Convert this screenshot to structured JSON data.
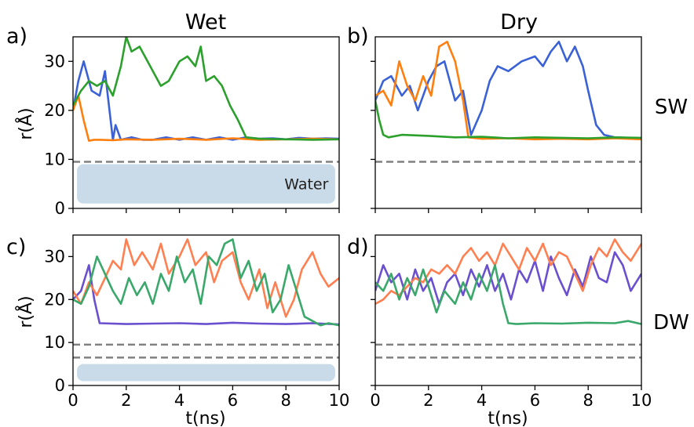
{
  "figure": {
    "column_titles": [
      "Wet",
      "Dry"
    ],
    "row_labels": [
      "SW",
      "DW"
    ],
    "panel_labels": [
      "a)",
      "b)",
      "c)",
      "d)"
    ],
    "xlabel": "t(ns)",
    "ylabel": "r(Å)",
    "water_label": "Water"
  },
  "chart_data": [
    {
      "type": "line",
      "panel": "a)",
      "column": "Wet",
      "row": "SW",
      "xlim": [
        0,
        10
      ],
      "ylim": [
        0,
        35
      ],
      "xticks": [
        0,
        2,
        4,
        6,
        8,
        10
      ],
      "yticks": [
        0,
        10,
        20,
        30
      ],
      "x_tick_labels_shown": false,
      "ylabel": "r(Å)",
      "reference_lines": [
        {
          "y": 9.5,
          "style": "dashed",
          "color": "#808080"
        }
      ],
      "shaded_region": {
        "label": "Water",
        "y_range": [
          1,
          9
        ],
        "color": "#c9dbe8"
      },
      "series": [
        {
          "color": "#3b61d6",
          "x": [
            0,
            0.2,
            0.4,
            0.7,
            1,
            1.2,
            1.5,
            1.6,
            1.8,
            2.2,
            2.6,
            3,
            3.5,
            4,
            4.5,
            5,
            5.5,
            6,
            6.5,
            7,
            7.5,
            8,
            8.5,
            9,
            9.5,
            10
          ],
          "y": [
            20,
            26,
            30,
            24,
            23,
            28,
            14,
            17,
            14,
            14.5,
            14,
            14,
            14.5,
            14,
            14.5,
            14,
            14.5,
            14,
            14.5,
            14.2,
            14.3,
            14.1,
            14.4,
            14.2,
            14.3,
            14.2
          ]
        },
        {
          "color": "#ff7f0e",
          "x": [
            0,
            0.2,
            0.4,
            0.6,
            0.8,
            1,
            1.5,
            2,
            3,
            4,
            5,
            6,
            7,
            8,
            9,
            10
          ],
          "y": [
            20,
            23,
            18,
            13.8,
            14,
            14,
            13.9,
            14.1,
            14,
            14.2,
            14,
            14.3,
            14,
            14.1,
            14.2,
            14.1
          ]
        },
        {
          "color": "#2ca02c",
          "x": [
            0,
            0.3,
            0.6,
            0.9,
            1.2,
            1.5,
            1.8,
            2,
            2.2,
            2.5,
            3,
            3.3,
            3.6,
            4,
            4.3,
            4.6,
            4.8,
            5,
            5.3,
            5.6,
            5.9,
            6.2,
            6.5,
            7,
            8,
            9,
            10
          ],
          "y": [
            21,
            24,
            26,
            25,
            26,
            23,
            29,
            35,
            32,
            33,
            28,
            25,
            26,
            30,
            31,
            29,
            33,
            26,
            27,
            25,
            21,
            18,
            14.5,
            14.2,
            14.1,
            14,
            14.1
          ]
        }
      ]
    },
    {
      "type": "line",
      "panel": "b)",
      "column": "Dry",
      "row": "SW",
      "xlim": [
        0,
        10
      ],
      "ylim": [
        0,
        35
      ],
      "xticks": [
        0,
        2,
        4,
        6,
        8,
        10
      ],
      "yticks": [
        0,
        10,
        20,
        30
      ],
      "x_tick_labels_shown": false,
      "y_tick_labels_shown": false,
      "reference_lines": [
        {
          "y": 9.5,
          "style": "dashed",
          "color": "#808080"
        }
      ],
      "series": [
        {
          "color": "#3b61d6",
          "x": [
            0,
            0.3,
            0.6,
            1,
            1.3,
            1.6,
            2,
            2.3,
            2.6,
            3,
            3.3,
            3.6,
            4,
            4.3,
            4.6,
            5,
            5.5,
            6,
            6.3,
            6.6,
            6.9,
            7.2,
            7.5,
            7.8,
            8,
            8.3,
            8.6,
            9,
            10
          ],
          "y": [
            22,
            26,
            27,
            23,
            25,
            20,
            26,
            29,
            30,
            22,
            24,
            15,
            20,
            26,
            29,
            28,
            30,
            31,
            29,
            32,
            34,
            30,
            33,
            29,
            24,
            17,
            15,
            14.5,
            14.3
          ]
        },
        {
          "color": "#ff7f0e",
          "x": [
            0,
            0.3,
            0.6,
            0.9,
            1.2,
            1.5,
            1.8,
            2.1,
            2.4,
            2.7,
            3,
            3.3,
            3.5,
            4,
            5,
            6,
            7,
            8,
            9,
            10
          ],
          "y": [
            23,
            24,
            21,
            30,
            25,
            22,
            27,
            23,
            33,
            34,
            30,
            22,
            14.5,
            14.2,
            14.3,
            14.1,
            14.2,
            14.1,
            14.3,
            14.1
          ]
        },
        {
          "color": "#2ca02c",
          "x": [
            0,
            0.15,
            0.3,
            0.5,
            1,
            2,
            3,
            4,
            5,
            6,
            7,
            8,
            9,
            10
          ],
          "y": [
            22,
            18,
            15,
            14.5,
            15,
            14.8,
            14.5,
            14.6,
            14.3,
            14.5,
            14.4,
            14.3,
            14.5,
            14.4
          ]
        }
      ]
    },
    {
      "type": "line",
      "panel": "c)",
      "column": "Wet",
      "row": "DW",
      "xlim": [
        0,
        10
      ],
      "ylim": [
        0,
        35
      ],
      "xticks": [
        0,
        2,
        4,
        6,
        8,
        10
      ],
      "yticks": [
        0,
        10,
        20,
        30
      ],
      "x_tick_labels": [
        "0",
        "2",
        "4",
        "6",
        "8",
        "10"
      ],
      "xlabel": "t(ns)",
      "ylabel": "r(Å)",
      "reference_lines": [
        {
          "y": 9.5,
          "style": "dashed",
          "color": "#808080"
        },
        {
          "y": 6.5,
          "style": "dashed",
          "color": "#808080"
        }
      ],
      "shaded_region": {
        "y_range": [
          1,
          5
        ],
        "color": "#c9dbe8"
      },
      "series": [
        {
          "color": "#6a4fcf",
          "x": [
            0,
            0.3,
            0.6,
            0.8,
            1,
            2,
            3,
            4,
            5,
            6,
            7,
            8,
            9,
            10
          ],
          "y": [
            20,
            22,
            28,
            20,
            14.5,
            14.3,
            14.4,
            14.5,
            14.3,
            14.6,
            14.4,
            14.3,
            14.5,
            14.2
          ]
        },
        {
          "color": "#ff7f50",
          "x": [
            0,
            0.3,
            0.6,
            0.9,
            1.2,
            1.5,
            1.8,
            2,
            2.3,
            2.6,
            3,
            3.3,
            3.6,
            4,
            4.3,
            4.6,
            5,
            5.3,
            5.6,
            6,
            6.3,
            6.6,
            7,
            7.3,
            7.6,
            8,
            8.3,
            8.6,
            9,
            9.3,
            9.6,
            10
          ],
          "y": [
            22,
            19,
            24,
            21,
            25,
            29,
            27,
            34,
            28,
            31,
            27,
            33,
            26,
            30,
            34,
            28,
            31,
            24,
            29,
            31,
            24,
            20,
            27,
            18,
            24,
            16,
            20,
            27,
            31,
            26,
            23,
            25
          ]
        },
        {
          "color": "#3aa86b",
          "x": [
            0,
            0.3,
            0.6,
            0.9,
            1.2,
            1.5,
            1.8,
            2.1,
            2.4,
            2.7,
            3,
            3.3,
            3.6,
            3.9,
            4.2,
            4.5,
            4.8,
            5.1,
            5.4,
            5.7,
            6,
            6.3,
            6.6,
            6.9,
            7.2,
            7.5,
            7.8,
            8.1,
            8.4,
            8.7,
            9,
            9.3,
            9.6,
            10
          ],
          "y": [
            20,
            19,
            23,
            30,
            26,
            22,
            19,
            25,
            21,
            24,
            19,
            26,
            22,
            30,
            24,
            27,
            19,
            30,
            28,
            33,
            34,
            25,
            29,
            22,
            26,
            17,
            20,
            28,
            22,
            16,
            15,
            14,
            14.5,
            14
          ]
        }
      ]
    },
    {
      "type": "line",
      "panel": "d)",
      "column": "Dry",
      "row": "DW",
      "xlim": [
        0,
        10
      ],
      "ylim": [
        0,
        35
      ],
      "xticks": [
        0,
        2,
        4,
        6,
        8,
        10
      ],
      "yticks": [
        0,
        10,
        20,
        30
      ],
      "x_tick_labels": [
        "0",
        "2",
        "4",
        "6",
        "8",
        "10"
      ],
      "xlabel": "t(ns)",
      "y_tick_labels_shown": false,
      "reference_lines": [
        {
          "y": 9.5,
          "style": "dashed",
          "color": "#808080"
        },
        {
          "y": 6.5,
          "style": "dashed",
          "color": "#808080"
        }
      ],
      "series": [
        {
          "color": "#6a4fcf",
          "x": [
            0,
            0.3,
            0.6,
            0.9,
            1.2,
            1.5,
            1.8,
            2.1,
            2.4,
            2.7,
            3,
            3.3,
            3.6,
            3.9,
            4.2,
            4.5,
            4.8,
            5.1,
            5.4,
            5.7,
            6,
            6.3,
            6.6,
            6.9,
            7.2,
            7.5,
            7.8,
            8.1,
            8.4,
            8.7,
            9,
            9.3,
            9.6,
            10
          ],
          "y": [
            22,
            28,
            24,
            26,
            20,
            27,
            22,
            25,
            19,
            24,
            26,
            21,
            27,
            23,
            28,
            22,
            26,
            20,
            27,
            24,
            29,
            22,
            30,
            25,
            21,
            27,
            23,
            30,
            25,
            24,
            31,
            28,
            22,
            26
          ]
        },
        {
          "color": "#ff7f50",
          "x": [
            0,
            0.3,
            0.6,
            0.9,
            1.2,
            1.5,
            1.8,
            2.1,
            2.4,
            2.7,
            3,
            3.3,
            3.6,
            3.9,
            4.2,
            4.5,
            4.8,
            5.1,
            5.4,
            5.7,
            6,
            6.3,
            6.6,
            6.9,
            7.2,
            7.5,
            7.8,
            8.1,
            8.4,
            8.7,
            9,
            9.3,
            9.6,
            10
          ],
          "y": [
            19,
            20,
            22,
            21,
            23,
            25,
            24,
            27,
            26,
            28,
            26,
            30,
            32,
            29,
            31,
            28,
            33,
            30,
            27,
            32,
            29,
            33,
            28,
            31,
            30,
            26,
            22,
            28,
            32,
            30,
            34,
            31,
            29,
            33
          ]
        },
        {
          "color": "#3aa86b",
          "x": [
            0,
            0.3,
            0.6,
            0.9,
            1.2,
            1.5,
            1.8,
            2,
            2.3,
            2.6,
            3,
            3.3,
            3.6,
            3.9,
            4.2,
            4.5,
            4.8,
            5,
            5.3,
            6,
            7,
            8,
            9,
            9.5,
            10
          ],
          "y": [
            24,
            22,
            26,
            20,
            25,
            21,
            27,
            23,
            17,
            22,
            19,
            24,
            20,
            26,
            22,
            28,
            19,
            14.5,
            14.3,
            14.5,
            14.4,
            14.6,
            14.5,
            15,
            14.3
          ]
        }
      ]
    }
  ]
}
